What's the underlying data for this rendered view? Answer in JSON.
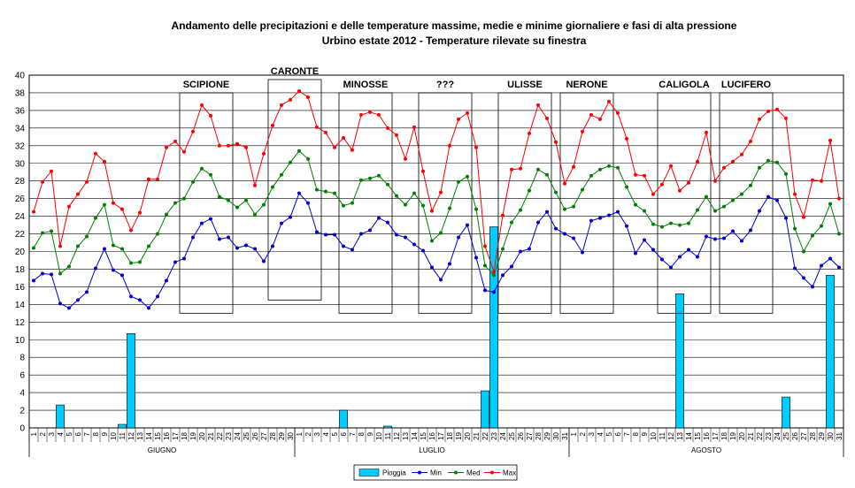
{
  "chart_data": {
    "type": "bar+line",
    "title": "Andamento delle precipitazioni e delle temperature massime, medie e minime giornaliere e fasi di alta pressione",
    "subtitle": "Urbino estate 2012 - Temperature rilevate su finestra",
    "ylim": [
      0,
      40
    ],
    "yticks": [
      "0",
      "2",
      "4",
      "6",
      "8",
      "10",
      "12",
      "14",
      "16",
      "18",
      "20",
      "22",
      "24",
      "26",
      "28",
      "30",
      "32",
      "34",
      "36",
      "38",
      "40"
    ],
    "grid": true,
    "legend_position": "bottom",
    "months": [
      {
        "label": "GIUGNO",
        "days": 30
      },
      {
        "label": "LUGLIO",
        "days": 31
      },
      {
        "label": "AGOSTO",
        "days": 31
      }
    ],
    "day_labels": [
      "1",
      "2",
      "3",
      "4",
      "5",
      "6",
      "7",
      "8",
      "9",
      "10",
      "11",
      "12",
      "13",
      "14",
      "15",
      "16",
      "17",
      "18",
      "19",
      "20",
      "21",
      "22",
      "23",
      "24",
      "25",
      "26",
      "27",
      "28",
      "29",
      "30",
      "1",
      "2",
      "3",
      "4",
      "5",
      "6",
      "7",
      "8",
      "9",
      "10",
      "11",
      "12",
      "13",
      "14",
      "15",
      "16",
      "17",
      "18",
      "19",
      "20",
      "21",
      "22",
      "23",
      "24",
      "25",
      "26",
      "27",
      "28",
      "29",
      "30",
      "31",
      "1",
      "2",
      "3",
      "4",
      "5",
      "6",
      "7",
      "8",
      "9",
      "10",
      "11",
      "12",
      "13",
      "14",
      "15",
      "16",
      "17",
      "18",
      "19",
      "20",
      "21",
      "22",
      "23",
      "24",
      "25",
      "26",
      "27",
      "28",
      "29",
      "30",
      "31"
    ],
    "series": [
      {
        "name": "Pioggia",
        "kind": "bar",
        "color": "#00ccff",
        "values": [
          0,
          0,
          0,
          2.6,
          0,
          0,
          0,
          0,
          0,
          0,
          0.4,
          10.7,
          0,
          0,
          0,
          0,
          0,
          0,
          0,
          0,
          0,
          0,
          0,
          0,
          0,
          0,
          0,
          0,
          0,
          0,
          0,
          0,
          0,
          0,
          0,
          2,
          0,
          0,
          0,
          0,
          0.2,
          0,
          0,
          0,
          0,
          0,
          0,
          0,
          0,
          0,
          0,
          4.2,
          22.8,
          0,
          0,
          0,
          0,
          0,
          0,
          0,
          0,
          0,
          0,
          0,
          0,
          0,
          0,
          0,
          0,
          0,
          0,
          0,
          0,
          15.2,
          0,
          0,
          0,
          0,
          0,
          0,
          0,
          0,
          0,
          0,
          0,
          3.5,
          0,
          0,
          0,
          0,
          17.3
        ]
      },
      {
        "name": "Min",
        "kind": "line",
        "color": "#0000cc",
        "values": [
          16.7,
          17.5,
          17.4,
          14.1,
          13.6,
          14.5,
          15.4,
          18.1,
          20.3,
          17.9,
          17.3,
          14.9,
          14.5,
          13.6,
          14.9,
          16.7,
          18.8,
          19.2,
          21.6,
          23.2,
          23.7,
          21.4,
          21.6,
          20.4,
          20.7,
          20.3,
          18.9,
          20.6,
          23.2,
          23.9,
          26.6,
          25.5,
          22.2,
          21.9,
          21.9,
          20.6,
          20.2,
          22.0,
          22.4,
          23.8,
          23.3,
          21.9,
          21.6,
          20.8,
          20.1,
          18.2,
          16.8,
          18.6,
          21.6,
          23.0,
          19.3,
          15.6,
          15.4,
          17.3,
          18.3,
          20.0,
          20.3,
          23.3,
          24.5,
          22.6,
          22.0,
          21.5,
          19.9,
          23.5,
          23.8,
          24.1,
          24.5,
          22.9,
          19.8,
          21.3,
          20.2,
          19.1,
          18.2,
          19.4,
          20.2,
          19.4,
          21.7,
          21.4,
          21.5,
          22.3,
          21.2,
          22.4,
          24.6,
          26.2,
          25.8,
          23.8,
          18.1,
          17.0,
          16.0,
          18.4,
          19.2,
          18.2
        ]
      },
      {
        "name": "Med",
        "kind": "line",
        "color": "#008000",
        "values": [
          20.4,
          22.1,
          22.3,
          17.5,
          18.3,
          20.6,
          21.7,
          23.8,
          25.3,
          20.7,
          20.3,
          18.7,
          18.8,
          20.6,
          22.0,
          24.2,
          25.5,
          26.0,
          27.9,
          29.4,
          28.7,
          26.2,
          25.8,
          25.0,
          25.8,
          24.2,
          25.3,
          27.3,
          28.7,
          30.1,
          31.4,
          30.5,
          27.0,
          26.8,
          26.6,
          25.2,
          25.5,
          28.1,
          28.3,
          28.6,
          27.6,
          26.3,
          25.3,
          26.6,
          25.2,
          21.2,
          22.1,
          24.9,
          27.9,
          28.5,
          24.8,
          18.4,
          17.3,
          20.3,
          23.3,
          24.7,
          26.9,
          29.3,
          28.7,
          26.7,
          24.8,
          25.1,
          27.0,
          28.6,
          29.3,
          29.7,
          29.5,
          27.3,
          25.3,
          24.6,
          23.1,
          22.8,
          23.2,
          23.0,
          23.2,
          24.7,
          26.2,
          24.6,
          25.1,
          25.8,
          26.5,
          27.5,
          29.5,
          30.3,
          30.1,
          28.8,
          22.6,
          20.0,
          21.8,
          22.9,
          25.4,
          22.0
        ]
      },
      {
        "name": "Max",
        "kind": "line",
        "color": "#ff0000",
        "values": [
          24.5,
          27.9,
          29.1,
          20.6,
          25.1,
          26.5,
          27.9,
          31.1,
          30.2,
          25.5,
          24.8,
          22.4,
          24.4,
          28.2,
          28.2,
          31.8,
          32.5,
          31.3,
          33.6,
          36.6,
          35.4,
          32.0,
          32.0,
          32.2,
          31.8,
          27.5,
          31.1,
          34.3,
          36.6,
          37.2,
          38.2,
          37.5,
          34.1,
          33.5,
          31.8,
          32.9,
          31.5,
          35.5,
          35.8,
          35.5,
          34.0,
          33.2,
          30.5,
          34.1,
          29.1,
          24.6,
          26.7,
          32.0,
          35.0,
          35.7,
          31.8,
          20.6,
          17.7,
          24.1,
          29.3,
          29.4,
          33.4,
          36.6,
          35.1,
          32.4,
          27.7,
          29.6,
          33.6,
          35.5,
          35.0,
          37.0,
          35.7,
          32.8,
          28.7,
          28.6,
          26.5,
          27.6,
          29.7,
          26.9,
          27.8,
          30.2,
          33.5,
          28.0,
          29.5,
          30.2,
          31.0,
          32.5,
          35.0,
          35.9,
          36.1,
          35.1,
          26.5,
          23.9,
          28.1,
          28.0,
          32.6,
          26.0
        ]
      }
    ],
    "phases": [
      {
        "label": "SCIPIONE",
        "start": 17,
        "end": 22,
        "top": 38,
        "bottom": 13
      },
      {
        "label": "CARONTE",
        "start": 27,
        "end": 32,
        "top": 39.5,
        "bottom": 14.5
      },
      {
        "label": "MINOSSE",
        "start": 35,
        "end": 40,
        "top": 38,
        "bottom": 13
      },
      {
        "label": "???",
        "start": 44,
        "end": 49,
        "top": 38,
        "bottom": 13
      },
      {
        "label": "ULISSE",
        "start": 53,
        "end": 58,
        "top": 38,
        "bottom": 13
      },
      {
        "label": "NERONE",
        "start": 60,
        "end": 65,
        "top": 38,
        "bottom": 13
      },
      {
        "label": "CALIGOLA",
        "start": 71,
        "end": 76,
        "top": 38,
        "bottom": 13
      },
      {
        "label": "LUCIFERO",
        "start": 78,
        "end": 83,
        "top": 38,
        "bottom": 13
      }
    ]
  }
}
